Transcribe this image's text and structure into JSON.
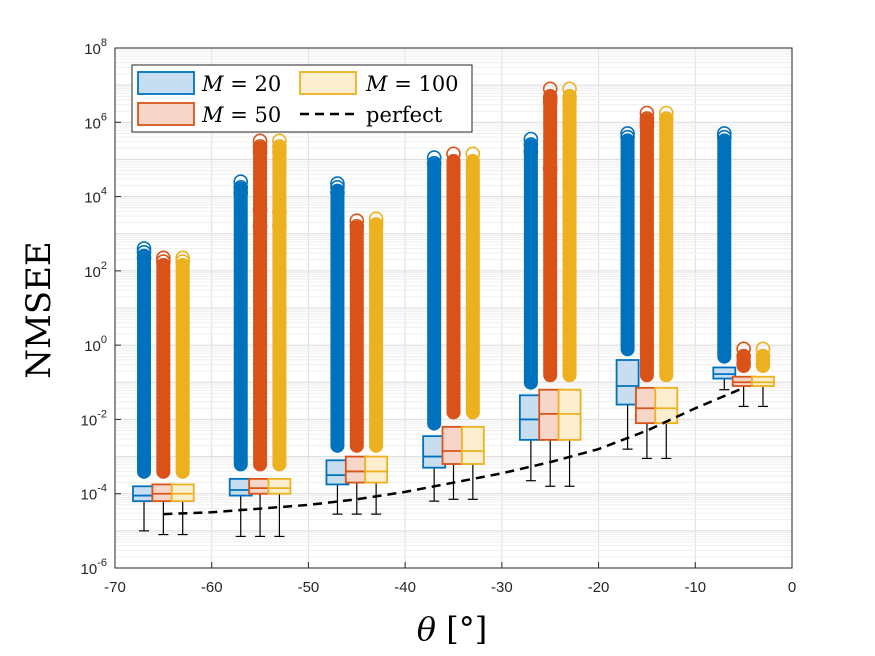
{
  "chart_data": {
    "type": "boxplot",
    "xlabel": "θ [°]",
    "ylabel": "NMSEE",
    "yscale": "log",
    "xlim": [
      -70,
      0
    ],
    "ylim_exponent": [
      -6,
      8
    ],
    "grid": true,
    "legend_placement": "top-left",
    "x_ticks": [
      "-70",
      "-60",
      "-50",
      "-40",
      "-30",
      "-20",
      "-10",
      "0"
    ],
    "x_tick_values": [
      -70,
      -60,
      -50,
      -40,
      -30,
      -20,
      -10,
      0
    ],
    "y_ticks": [
      {
        "base": "10",
        "exp": "-6"
      },
      {
        "base": "10",
        "exp": "-4"
      },
      {
        "base": "10",
        "exp": "-2"
      },
      {
        "base": "10",
        "exp": "0"
      },
      {
        "base": "10",
        "exp": "2"
      },
      {
        "base": "10",
        "exp": "4"
      },
      {
        "base": "10",
        "exp": "6"
      },
      {
        "base": "10",
        "exp": "8"
      }
    ],
    "y_tick_exponents": [
      -6,
      -4,
      -2,
      0,
      2,
      4,
      6,
      8
    ],
    "legend": {
      "m20": {
        "var": "M",
        "rest": " = 20"
      },
      "m50": {
        "var": "M",
        "rest": " = 50"
      },
      "m100": {
        "var": "M",
        "rest": " = 100"
      },
      "perfect": "perfect"
    },
    "colors": {
      "m20": {
        "edge": "#0072BD",
        "fill": "#C6DEF0"
      },
      "m50": {
        "edge": "#D95319",
        "fill": "#F5D6C9"
      },
      "m100": {
        "edge": "#EDB120",
        "fill": "#FBEFD0"
      },
      "perfect": "#000000"
    },
    "groups": [
      {
        "theta": -65,
        "boxes": [
          {
            "series": "m20",
            "x": -67,
            "whisk_lo": -5.0,
            "q1": -4.2,
            "med": -4.05,
            "q3": -3.8,
            "out_lo": -3.6,
            "out_hi": 2.6,
            "dots": [
              2.6,
              2.5,
              2.35
            ]
          },
          {
            "series": "m50",
            "x": -65,
            "whisk_lo": -5.1,
            "q1": -4.2,
            "med": -4.0,
            "q3": -3.75,
            "out_lo": -3.6,
            "out_hi": 2.35,
            "dots": [
              2.35,
              2.25
            ]
          },
          {
            "series": "m100",
            "x": -63,
            "whisk_lo": -5.1,
            "q1": -4.2,
            "med": -4.0,
            "q3": -3.75,
            "out_lo": -3.6,
            "out_hi": 2.35,
            "dots": [
              2.35,
              2.25
            ]
          }
        ]
      },
      {
        "theta": -55,
        "boxes": [
          {
            "series": "m20",
            "x": -57,
            "whisk_lo": -5.15,
            "q1": -4.05,
            "med": -3.9,
            "q3": -3.6,
            "out_lo": -3.4,
            "out_hi": 4.4,
            "dots": [
              4.4,
              4.25,
              4.1
            ]
          },
          {
            "series": "m50",
            "x": -55,
            "whisk_lo": -5.15,
            "q1": -4.0,
            "med": -3.85,
            "q3": -3.6,
            "out_lo": -3.4,
            "out_hi": 5.5,
            "dots": [
              5.5,
              5.35,
              5.2,
              3.65,
              3.2
            ]
          },
          {
            "series": "m100",
            "x": -53,
            "whisk_lo": -5.15,
            "q1": -4.0,
            "med": -3.85,
            "q3": -3.6,
            "out_lo": -3.4,
            "out_hi": 5.5,
            "dots": [
              5.5,
              5.35,
              5.2,
              3.6,
              3.2
            ]
          }
        ]
      },
      {
        "theta": -45,
        "boxes": [
          {
            "series": "m20",
            "x": -47,
            "whisk_lo": -4.55,
            "q1": -3.75,
            "med": -3.5,
            "q3": -3.1,
            "out_lo": -2.9,
            "out_hi": 4.35,
            "dots": [
              4.35,
              4.25,
              4.1
            ]
          },
          {
            "series": "m50",
            "x": -45,
            "whisk_lo": -4.55,
            "q1": -3.7,
            "med": -3.4,
            "q3": -3.0,
            "out_lo": -2.9,
            "out_hi": 3.35,
            "dots": [
              3.35,
              3.2
            ]
          },
          {
            "series": "m100",
            "x": -43,
            "whisk_lo": -4.55,
            "q1": -3.7,
            "med": -3.4,
            "q3": -3.0,
            "out_lo": -2.9,
            "out_hi": 3.4,
            "dots": [
              3.4,
              3.25
            ]
          }
        ]
      },
      {
        "theta": -35,
        "boxes": [
          {
            "series": "m20",
            "x": -37,
            "whisk_lo": -4.2,
            "q1": -3.3,
            "med": -3.0,
            "q3": -2.45,
            "out_lo": -2.3,
            "out_hi": 5.05,
            "dots": [
              5.05,
              4.9
            ]
          },
          {
            "series": "m50",
            "x": -35,
            "whisk_lo": -4.15,
            "q1": -3.2,
            "med": -2.85,
            "q3": -2.2,
            "out_lo": -2.0,
            "out_hi": 5.15,
            "dots": [
              5.15
            ]
          },
          {
            "series": "m100",
            "x": -33,
            "whisk_lo": -4.15,
            "q1": -3.2,
            "med": -2.85,
            "q3": -2.2,
            "out_lo": -2.0,
            "out_hi": 5.15,
            "dots": [
              5.15
            ]
          }
        ]
      },
      {
        "theta": -25,
        "boxes": [
          {
            "series": "m20",
            "x": -27,
            "whisk_lo": -3.65,
            "q1": -2.55,
            "med": -2.0,
            "q3": -1.35,
            "out_lo": -1.2,
            "out_hi": 5.55,
            "dots": [
              5.55,
              5.4,
              5.2
            ]
          },
          {
            "series": "m50",
            "x": -25,
            "whisk_lo": -3.8,
            "q1": -2.55,
            "med": -1.85,
            "q3": -1.2,
            "out_lo": -1.0,
            "out_hi": 6.9,
            "dots": [
              6.9,
              6.65,
              6.55,
              4.75
            ]
          },
          {
            "series": "m100",
            "x": -23,
            "whisk_lo": -3.8,
            "q1": -2.55,
            "med": -1.85,
            "q3": -1.2,
            "out_lo": -1.0,
            "out_hi": 6.9,
            "dots": [
              6.9,
              6.65
            ]
          }
        ]
      },
      {
        "theta": -15,
        "boxes": [
          {
            "series": "m20",
            "x": -17,
            "whisk_lo": -2.8,
            "q1": -1.6,
            "med": -1.1,
            "q3": -0.4,
            "out_lo": -0.3,
            "out_hi": 5.7,
            "dots": [
              5.7,
              5.6
            ]
          },
          {
            "series": "m50",
            "x": -15,
            "whisk_lo": -3.05,
            "q1": -2.1,
            "med": -1.7,
            "q3": -1.15,
            "out_lo": -1.0,
            "out_hi": 6.25,
            "dots": [
              6.25,
              6.1,
              6.0,
              5.9
            ]
          },
          {
            "series": "m100",
            "x": -13,
            "whisk_lo": -3.05,
            "q1": -2.1,
            "med": -1.7,
            "q3": -1.15,
            "out_lo": -1.0,
            "out_hi": 6.25,
            "dots": [
              6.25,
              6.1
            ]
          }
        ]
      },
      {
        "theta": -5,
        "boxes": [
          {
            "series": "m20",
            "x": -7,
            "whisk_lo": -1.2,
            "q1": -0.9,
            "med": -0.78,
            "q3": -0.6,
            "out_lo": -0.5,
            "out_hi": 5.7,
            "dots": [
              5.7,
              5.6
            ]
          },
          {
            "series": "m50",
            "x": -5,
            "whisk_lo": -1.65,
            "q1": -1.1,
            "med": -1.0,
            "q3": -0.85,
            "out_lo": -0.75,
            "out_hi": -0.1,
            "dots": [
              -0.1,
              -0.3,
              -0.5
            ]
          },
          {
            "series": "m100",
            "x": -3,
            "whisk_lo": -1.65,
            "q1": -1.1,
            "med": -1.0,
            "q3": -0.85,
            "out_lo": -0.75,
            "out_hi": -0.1,
            "dots": [
              -0.1,
              -0.3,
              -0.5
            ]
          }
        ]
      }
    ],
    "perfect_line": {
      "x": [
        -65,
        -60,
        -55,
        -50,
        -45,
        -40,
        -35,
        -30,
        -25,
        -20,
        -15,
        -10,
        -5
      ],
      "y_exponent": [
        -4.55,
        -4.5,
        -4.4,
        -4.3,
        -4.15,
        -3.95,
        -3.7,
        -3.45,
        -3.15,
        -2.8,
        -2.3,
        -1.7,
        -1.15
      ]
    }
  }
}
